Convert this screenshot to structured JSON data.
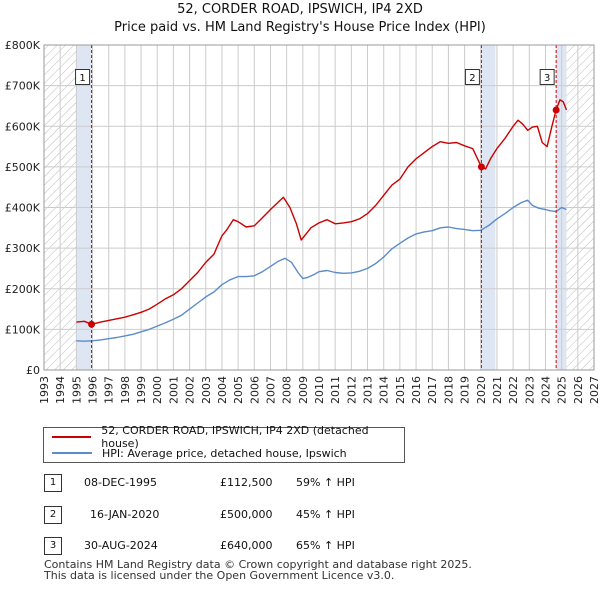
{
  "title_line1": "52, CORDER ROAD, IPSWICH, IP4 2XD",
  "title_line2": "Price paid vs. HM Land Registry's House Price Index (HPI)",
  "legend": {
    "property": "52, CORDER ROAD, IPSWICH, IP4 2XD (detached house)",
    "hpi": "HPI: Average price, detached house, Ipswich"
  },
  "transactions": [
    {
      "num": "1",
      "date": "08-DEC-1995",
      "price": "£112,500",
      "hpi": "59% ↑ HPI"
    },
    {
      "num": "2",
      "date": "16-JAN-2020",
      "price": "£500,000",
      "hpi": "45% ↑ HPI"
    },
    {
      "num": "3",
      "date": "30-AUG-2024",
      "price": "£640,000",
      "hpi": "65% ↑ HPI"
    }
  ],
  "footer_line1": "Contains HM Land Registry data © Crown copyright and database right 2025.",
  "footer_line2": "This data is licensed under the Open Government Licence v3.0.",
  "chart_data": {
    "type": "line",
    "title": "52, CORDER ROAD, IPSWICH, IP4 2XD — Price paid vs. HM Land Registry's House Price Index (HPI)",
    "xlim": [
      1993,
      2027
    ],
    "ylim": [
      0,
      800000
    ],
    "x_ticks": [
      1993,
      1994,
      1995,
      1996,
      1997,
      1998,
      1999,
      2000,
      2001,
      2002,
      2003,
      2004,
      2005,
      2006,
      2007,
      2008,
      2009,
      2010,
      2011,
      2012,
      2013,
      2014,
      2015,
      2016,
      2017,
      2018,
      2019,
      2020,
      2021,
      2022,
      2023,
      2024,
      2025,
      2026,
      2027
    ],
    "y_ticks": [
      {
        "value": 0,
        "label": "£0"
      },
      {
        "value": 100000,
        "label": "£100K"
      },
      {
        "value": 200000,
        "label": "£200K"
      },
      {
        "value": 300000,
        "label": "£300K"
      },
      {
        "value": 400000,
        "label": "£400K"
      },
      {
        "value": 500000,
        "label": "£500K"
      },
      {
        "value": 600000,
        "label": "£600K"
      },
      {
        "value": 700000,
        "label": "£700K"
      },
      {
        "value": 800000,
        "label": "£800K"
      }
    ],
    "colors": {
      "property": "#cc0000",
      "hpi": "#5b8cc9",
      "shade": "#dde6f2",
      "hatch": "#bbbbbb",
      "grid": "#cccccc",
      "marker_line": "#dd0000"
    },
    "shaded_ranges": [
      [
        1995.0,
        1995.94
      ],
      [
        2020.04,
        2020.9
      ],
      [
        2024.66,
        2025.3
      ]
    ],
    "hatched_ranges": [
      [
        1993,
        1995.0
      ],
      [
        2025.3,
        2027
      ]
    ],
    "series": [
      {
        "name": "52, CORDER ROAD, IPSWICH, IP4 2XD (detached house)",
        "key": "property",
        "x": [
          1995.0,
          1995.5,
          1995.94,
          1996.5,
          1997,
          1997.5,
          1998,
          1998.5,
          1999,
          1999.5,
          2000,
          2000.5,
          2001,
          2001.5,
          2002,
          2002.5,
          2003,
          2003.5,
          2004,
          2004.3,
          2004.7,
          2005,
          2005.5,
          2006,
          2006.5,
          2007,
          2007.4,
          2007.8,
          2008.2,
          2008.6,
          2008.9,
          2009.2,
          2009.5,
          2010,
          2010.5,
          2011,
          2011.5,
          2012,
          2012.5,
          2013,
          2013.5,
          2014,
          2014.5,
          2015,
          2015.5,
          2016,
          2016.5,
          2017,
          2017.5,
          2018,
          2018.5,
          2019,
          2019.5,
          2020.04,
          2020.3,
          2020.6,
          2021,
          2021.5,
          2022,
          2022.3,
          2022.6,
          2022.9,
          2023.2,
          2023.5,
          2023.8,
          2024.1,
          2024.4,
          2024.66,
          2024.9,
          2025.1,
          2025.3
        ],
        "values": [
          118000,
          120000,
          112500,
          118000,
          122000,
          126000,
          130000,
          136000,
          142000,
          150000,
          162000,
          175000,
          185000,
          200000,
          220000,
          240000,
          265000,
          285000,
          330000,
          345000,
          370000,
          365000,
          352000,
          355000,
          375000,
          395000,
          410000,
          425000,
          400000,
          360000,
          320000,
          335000,
          350000,
          362000,
          370000,
          360000,
          362000,
          365000,
          372000,
          385000,
          405000,
          430000,
          455000,
          470000,
          500000,
          520000,
          535000,
          550000,
          562000,
          558000,
          560000,
          552000,
          545000,
          500000,
          495000,
          520000,
          545000,
          570000,
          600000,
          615000,
          605000,
          590000,
          598000,
          600000,
          560000,
          550000,
          600000,
          640000,
          665000,
          660000,
          640000
        ]
      },
      {
        "name": "HPI: Average price, detached house, Ipswich",
        "key": "hpi",
        "x": [
          1995.0,
          1995.5,
          1996,
          1996.5,
          1997,
          1997.5,
          1998,
          1998.5,
          1999,
          1999.5,
          2000,
          2000.5,
          2001,
          2001.5,
          2002,
          2002.5,
          2003,
          2003.5,
          2004,
          2004.5,
          2005,
          2005.5,
          2006,
          2006.5,
          2007,
          2007.5,
          2007.9,
          2008.3,
          2008.7,
          2009,
          2009.3,
          2009.7,
          2010,
          2010.5,
          2011,
          2011.5,
          2012,
          2012.5,
          2013,
          2013.5,
          2014,
          2014.5,
          2015,
          2015.5,
          2016,
          2016.5,
          2017,
          2017.5,
          2018,
          2018.5,
          2019,
          2019.5,
          2020,
          2020.5,
          2021,
          2021.5,
          2022,
          2022.5,
          2022.9,
          2023.2,
          2023.6,
          2024,
          2024.3,
          2024.66,
          2025,
          2025.3
        ],
        "values": [
          72000,
          71000,
          72000,
          74000,
          77000,
          80000,
          84000,
          88000,
          94000,
          100000,
          108000,
          116000,
          125000,
          135000,
          150000,
          165000,
          180000,
          192000,
          210000,
          222000,
          230000,
          230000,
          232000,
          242000,
          255000,
          268000,
          275000,
          265000,
          240000,
          225000,
          228000,
          235000,
          242000,
          245000,
          240000,
          238000,
          239000,
          243000,
          250000,
          262000,
          278000,
          298000,
          312000,
          325000,
          335000,
          340000,
          343000,
          350000,
          352000,
          348000,
          346000,
          343000,
          344000,
          356000,
          372000,
          385000,
          400000,
          412000,
          418000,
          405000,
          398000,
          395000,
          392000,
          390000,
          400000,
          395000
        ]
      }
    ],
    "markers": [
      {
        "label": "1",
        "x": 1995.94,
        "y": 112500
      },
      {
        "label": "2",
        "x": 2020.04,
        "y": 500000
      },
      {
        "label": "3",
        "x": 2024.66,
        "y": 640000
      }
    ]
  }
}
